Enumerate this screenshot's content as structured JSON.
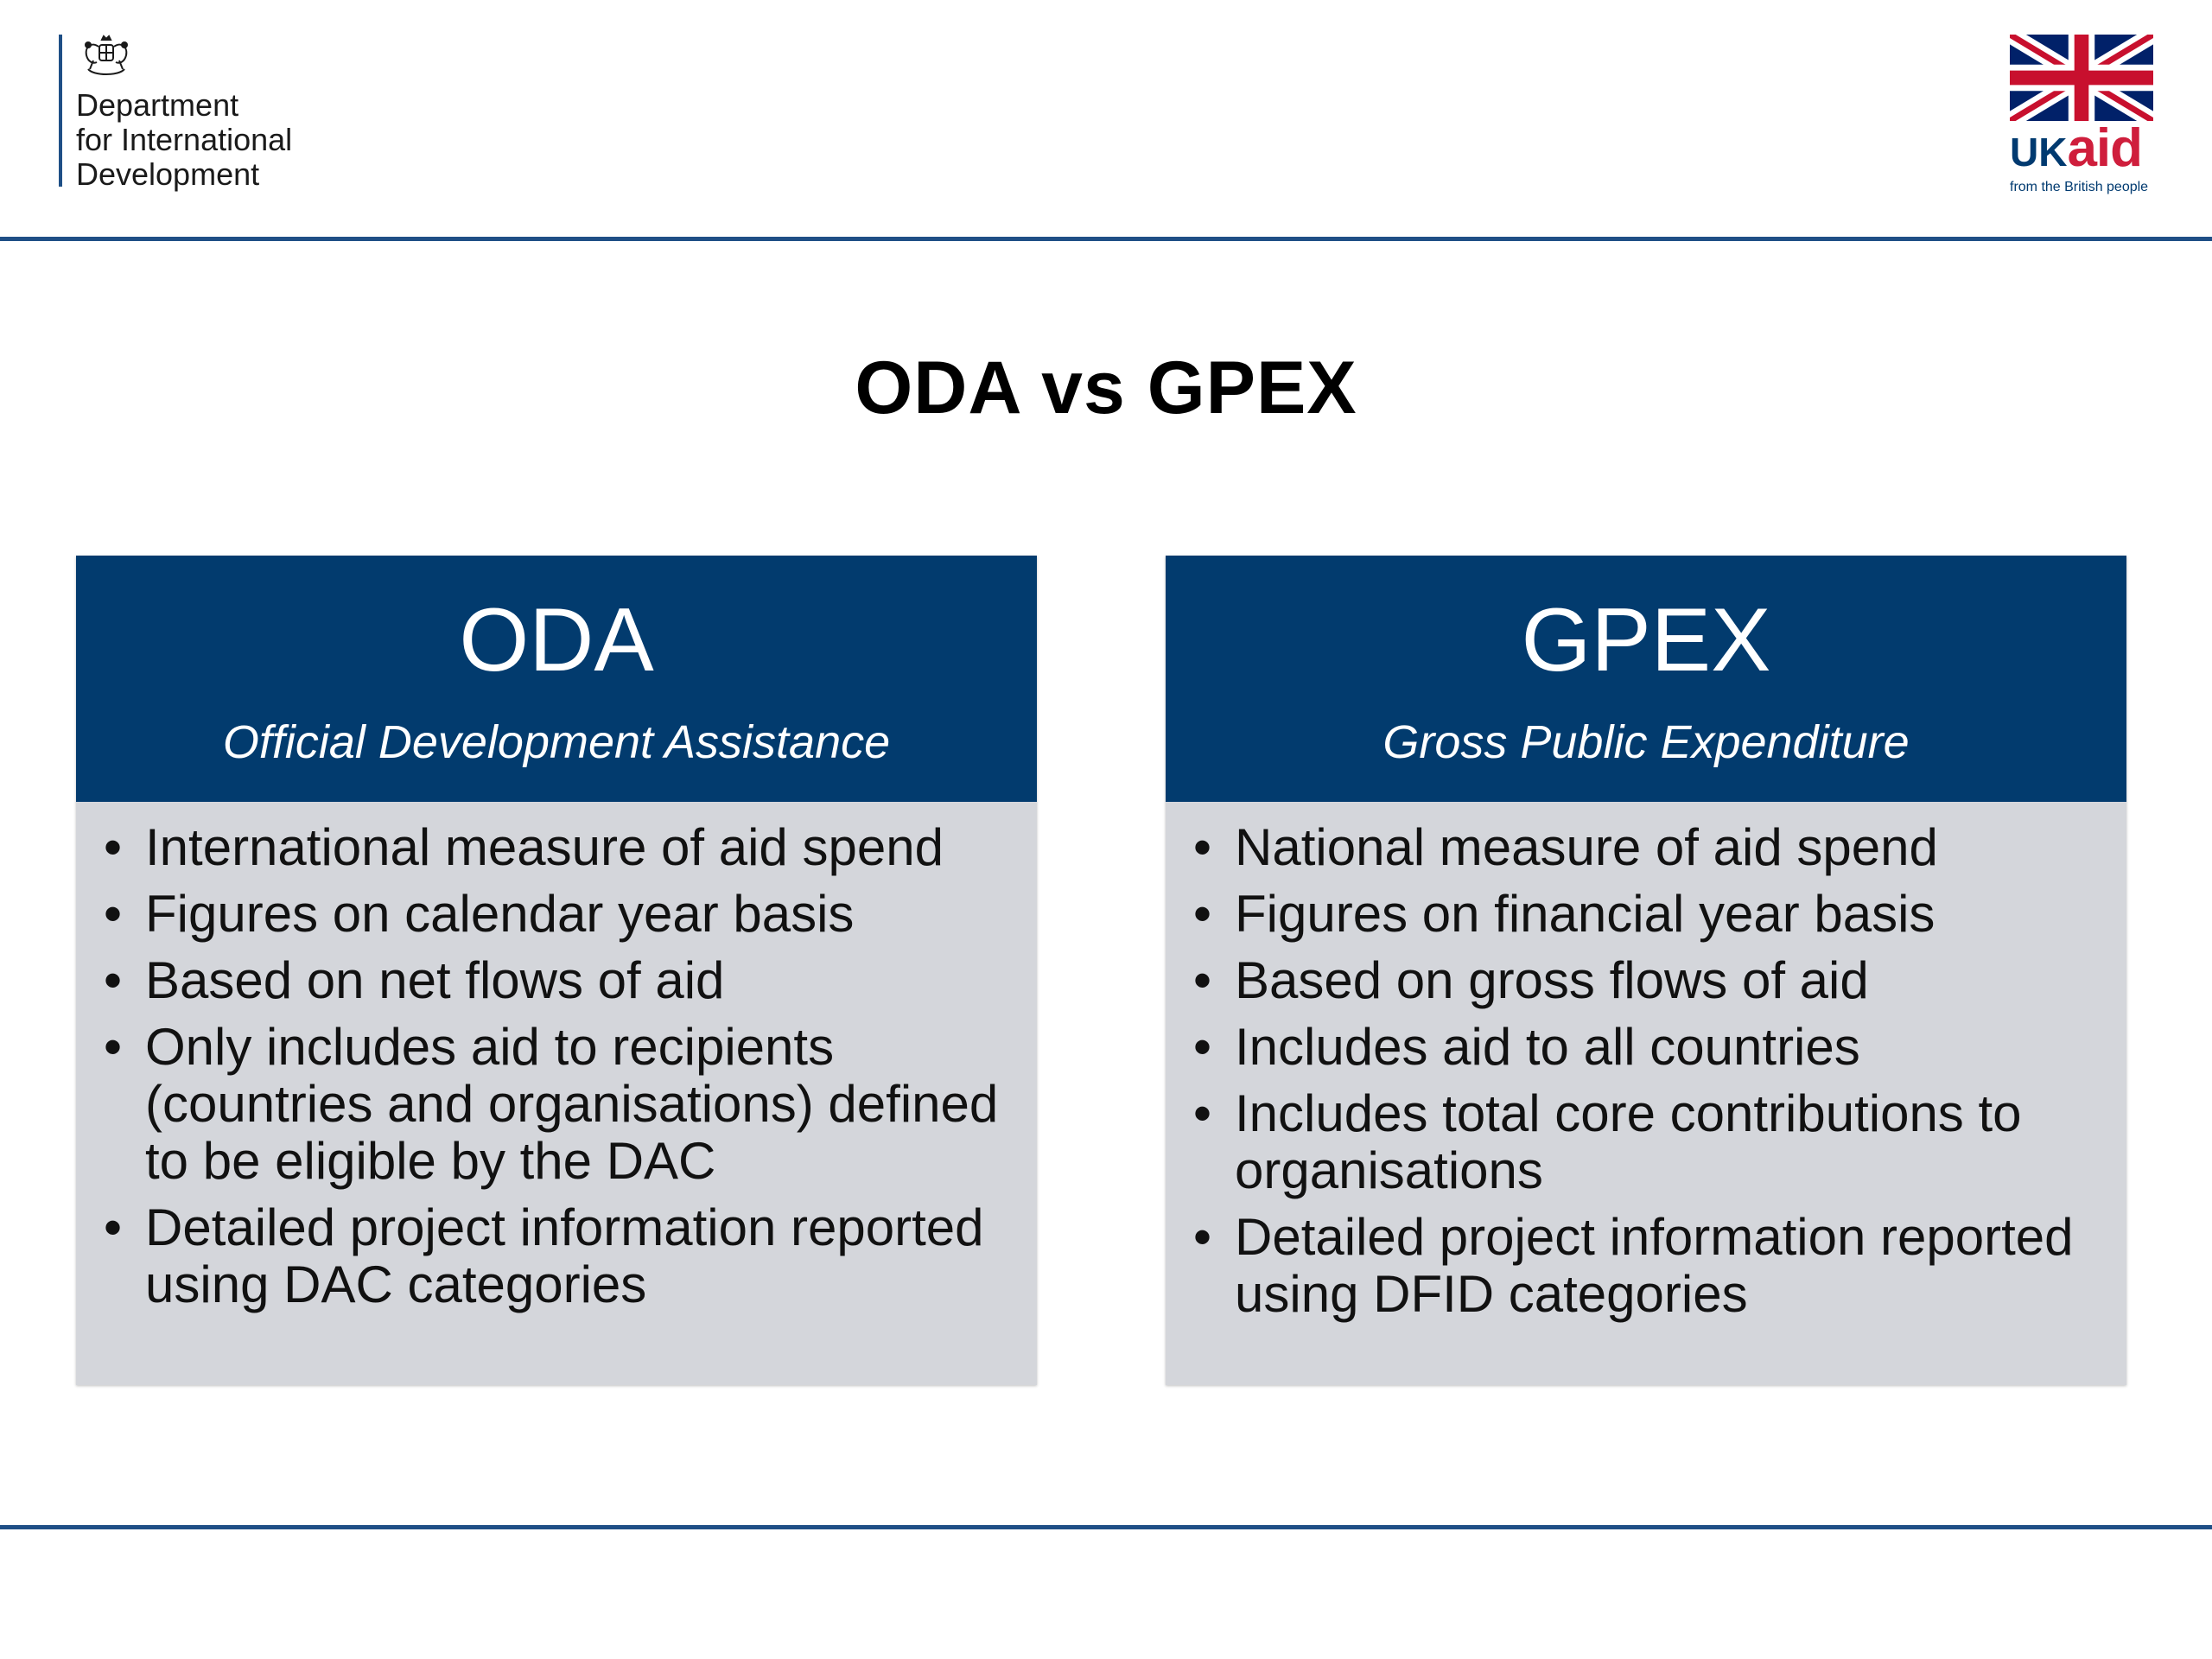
{
  "header": {
    "department_lines": [
      "Department",
      "for International",
      "Development"
    ],
    "ukaid": {
      "uk": "UK",
      "aid": "aid",
      "tagline": "from the British people"
    }
  },
  "title": "ODA vs GPEX",
  "cards": [
    {
      "title": "ODA",
      "subtitle": "Official Development Assistance",
      "bullets": [
        "International measure of aid spend",
        "Figures on calendar year basis",
        "Based on net flows of aid",
        "Only includes aid to recipients (countries and organisations) defined to be eligible by the DAC",
        "Detailed project information reported using DAC categories"
      ]
    },
    {
      "title": "GPEX",
      "subtitle": "Gross Public Expenditure",
      "bullets": [
        "National measure of aid spend",
        "Figures on financial year basis",
        "Based on gross flows of aid",
        "Includes aid to all countries",
        "Includes total core contributions to organisations",
        "Detailed project information reported using DFID categories"
      ]
    }
  ],
  "colors": {
    "navy": "#023b6e",
    "card_body": "#d4d6db",
    "rule": "#1f4f86",
    "ukaid_red": "#cf1e3c"
  },
  "icons": {
    "crest": "royal-coat-of-arms-icon",
    "flag": "union-jack-flag-icon"
  }
}
